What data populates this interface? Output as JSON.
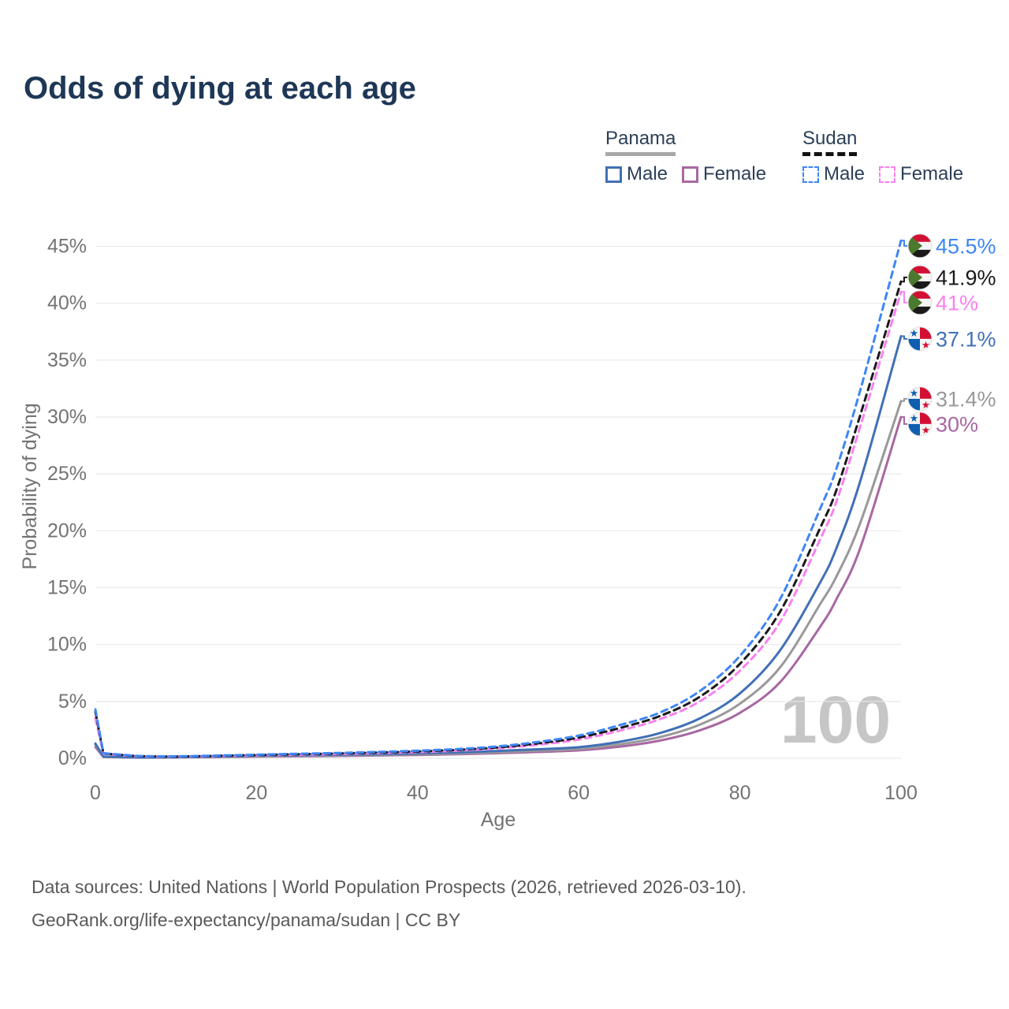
{
  "title": "Odds of dying at each age",
  "legend": {
    "groups": [
      {
        "name": "Panama",
        "line_style": "solid",
        "items": [
          {
            "label": "Male",
            "color": "#4170b6"
          },
          {
            "label": "Female",
            "color": "#a868a2"
          }
        ]
      },
      {
        "name": "Sudan",
        "line_style": "dashed",
        "items": [
          {
            "label": "Male",
            "color": "#3e86f5"
          },
          {
            "label": "Female",
            "color": "#f981ef"
          }
        ]
      }
    ]
  },
  "watermark": "100",
  "footer": {
    "line1": "Data sources: United Nations | World Population Prospects (2026, retrieved 2026-03-10).",
    "line2": "GeoRank.org/life-expectancy/panama/sudan | CC BY"
  },
  "chart_data": {
    "type": "line",
    "title": "Odds of dying at each age",
    "xlabel": "Age",
    "ylabel": "Probability of dying",
    "xlim": [
      0,
      100
    ],
    "ylim": [
      0,
      45
    ],
    "x_ticks": [
      0,
      20,
      40,
      60,
      80,
      100
    ],
    "y_tick_values": [
      0,
      5,
      10,
      15,
      20,
      25,
      30,
      35,
      40,
      45
    ],
    "y_tick_labels": [
      "0%",
      "5%",
      "10%",
      "15%",
      "20%",
      "25%",
      "30%",
      "35%",
      "40%",
      "45%"
    ],
    "grid": "horizontal",
    "legend_position": "top-right",
    "x": [
      0,
      1,
      5,
      10,
      15,
      20,
      25,
      30,
      35,
      40,
      45,
      50,
      55,
      60,
      65,
      70,
      75,
      80,
      85,
      90,
      92,
      95,
      100
    ],
    "series": [
      {
        "name": "Panama Female",
        "country": "Panama",
        "sex": "Female",
        "color": "#a868a2",
        "dash": false,
        "flag": "panama",
        "end_label": "30%",
        "values": [
          1.0,
          0.12,
          0.06,
          0.08,
          0.11,
          0.15,
          0.18,
          0.21,
          0.25,
          0.3,
          0.36,
          0.45,
          0.56,
          0.7,
          1.02,
          1.55,
          2.45,
          4.0,
          6.7,
          11.6,
          14.0,
          18.6,
          30.0
        ]
      },
      {
        "name": "Panama (both sexes)",
        "country": "Panama",
        "sex": "Both",
        "color": "#999999",
        "dash": false,
        "flag": "panama",
        "end_label": "31.4%",
        "values": [
          1.2,
          0.13,
          0.07,
          0.09,
          0.13,
          0.18,
          0.22,
          0.26,
          0.3,
          0.36,
          0.43,
          0.54,
          0.67,
          0.83,
          1.22,
          1.85,
          2.95,
          4.8,
          8.0,
          13.6,
          16.0,
          20.8,
          31.4
        ]
      },
      {
        "name": "Panama Male",
        "country": "Panama",
        "sex": "Male",
        "color": "#4170b6",
        "dash": false,
        "flag": "panama",
        "end_label": "37.1%",
        "values": [
          1.3,
          0.15,
          0.08,
          0.1,
          0.15,
          0.22,
          0.27,
          0.31,
          0.36,
          0.43,
          0.52,
          0.65,
          0.8,
          0.98,
          1.45,
          2.2,
          3.5,
          5.7,
          9.5,
          15.5,
          18.5,
          24.5,
          37.1
        ]
      },
      {
        "name": "Sudan Female",
        "country": "Sudan",
        "sex": "Female",
        "color": "#f981ef",
        "dash": true,
        "flag": "sudan",
        "end_label": "41%",
        "values": [
          3.5,
          0.4,
          0.19,
          0.15,
          0.2,
          0.26,
          0.32,
          0.38,
          0.46,
          0.55,
          0.68,
          0.88,
          1.2,
          1.65,
          2.42,
          3.42,
          5.0,
          7.7,
          12.0,
          19.3,
          22.6,
          29.3,
          41.0
        ]
      },
      {
        "name": "Sudan (both sexes)",
        "country": "Sudan",
        "sex": "Both",
        "color": "#1a1a1a",
        "dash": true,
        "flag": "sudan",
        "end_label": "41.9%",
        "values": [
          4.1,
          0.42,
          0.2,
          0.16,
          0.22,
          0.29,
          0.36,
          0.43,
          0.51,
          0.61,
          0.75,
          0.96,
          1.32,
          1.82,
          2.65,
          3.7,
          5.4,
          8.3,
          12.9,
          20.3,
          23.6,
          30.3,
          41.9
        ]
      },
      {
        "name": "Sudan Male",
        "country": "Sudan",
        "sex": "Male",
        "color": "#3e86f5",
        "dash": true,
        "flag": "sudan",
        "end_label": "45.5%",
        "values": [
          4.3,
          0.45,
          0.22,
          0.18,
          0.24,
          0.32,
          0.4,
          0.47,
          0.56,
          0.67,
          0.82,
          1.05,
          1.45,
          2.0,
          2.9,
          4.0,
          5.9,
          9.0,
          14.0,
          22.0,
          25.5,
          32.5,
          45.5
        ]
      }
    ]
  }
}
